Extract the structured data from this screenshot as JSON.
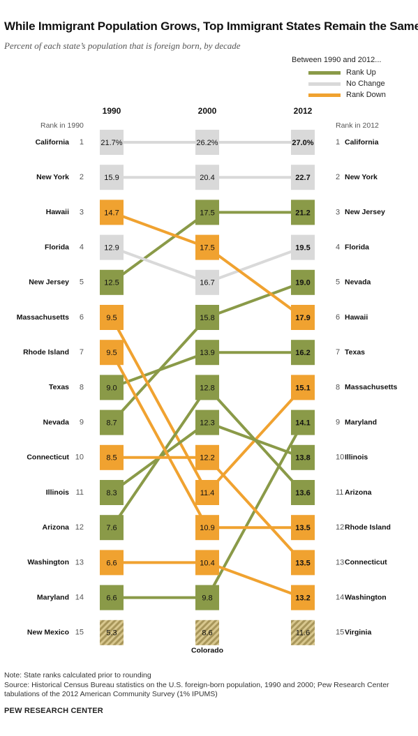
{
  "title": "While Immigrant Population Grows, Top Immigrant States Remain the Same",
  "subtitle": "Percent of each state’s population that is foreign born, by decade",
  "legend": {
    "title": "Between 1990 and 2012...",
    "items": [
      {
        "label": "Rank Up",
        "color": "#8a9a48"
      },
      {
        "label": "No Change",
        "color": "#d9d9d9"
      },
      {
        "label": "Rank Down",
        "color": "#f0a230"
      }
    ]
  },
  "colors": {
    "up": "#8a9a48",
    "same": "#d9d9d9",
    "down": "#f0a230",
    "hatch_a": "#d8c78e",
    "hatch_b": "#a8965a"
  },
  "chart_data": {
    "type": "slope",
    "columns": [
      "1990",
      "2000",
      "2012"
    ],
    "left_header": "Rank in 1990",
    "right_header": "Rank in 2012",
    "unit": "percent foreign born",
    "extra_label_2000": "Colorado",
    "states": [
      {
        "name": "California",
        "status": "same",
        "ranks": [
          1,
          1,
          1
        ],
        "values": [
          "21.7%",
          "26.2%",
          "27.0%"
        ]
      },
      {
        "name": "New York",
        "status": "same",
        "ranks": [
          2,
          2,
          2
        ],
        "values": [
          "15.9",
          "20.4",
          "22.7"
        ]
      },
      {
        "name": "New Jersey",
        "status": "up",
        "ranks": [
          5,
          3,
          3
        ],
        "values": [
          "12.5",
          "17.5",
          "21.2"
        ]
      },
      {
        "name": "Florida",
        "status": "same",
        "ranks": [
          4,
          5,
          4
        ],
        "values": [
          "12.9",
          "16.7",
          "19.5"
        ]
      },
      {
        "name": "Nevada",
        "status": "up",
        "ranks": [
          9,
          6,
          5
        ],
        "values": [
          "8.7",
          "15.8",
          "19.0"
        ]
      },
      {
        "name": "Hawaii",
        "status": "down",
        "ranks": [
          3,
          4,
          6
        ],
        "values": [
          "14.7",
          "17.5",
          "17.9"
        ]
      },
      {
        "name": "Texas",
        "status": "up",
        "ranks": [
          8,
          7,
          7
        ],
        "values": [
          "9.0",
          "13.9",
          "16.2"
        ]
      },
      {
        "name": "Massachusetts",
        "status": "down",
        "ranks": [
          6,
          11,
          8
        ],
        "values": [
          "9.5",
          "11.4",
          "15.1"
        ]
      },
      {
        "name": "Maryland",
        "status": "up",
        "ranks": [
          14,
          14,
          9
        ],
        "values": [
          "6.6",
          "9.8",
          "14.1"
        ]
      },
      {
        "name": "Illinois",
        "status": "up",
        "ranks": [
          11,
          9,
          10
        ],
        "values": [
          "8.3",
          "12.3",
          "13.8"
        ]
      },
      {
        "name": "Arizona",
        "status": "up",
        "ranks": [
          12,
          8,
          11
        ],
        "values": [
          "7.6",
          "12.8",
          "13.6"
        ]
      },
      {
        "name": "Rhode Island",
        "status": "down",
        "ranks": [
          7,
          12,
          12
        ],
        "values": [
          "9.5",
          "10.9",
          "13.5"
        ]
      },
      {
        "name": "Connecticut",
        "status": "down",
        "ranks": [
          10,
          10,
          13
        ],
        "values": [
          "8.5",
          "12.2",
          "13.5"
        ]
      },
      {
        "name": "Washington",
        "status": "down",
        "ranks": [
          13,
          13,
          14
        ],
        "values": [
          "6.6",
          "10.4",
          "13.2"
        ]
      },
      {
        "name": "New Mexico",
        "status": "hatch",
        "ranks": [
          15,
          null,
          null
        ],
        "values": [
          "5.3",
          null,
          null
        ]
      },
      {
        "name": "Colorado",
        "status": "hatch",
        "ranks": [
          null,
          15,
          null
        ],
        "values": [
          null,
          "8.6",
          null
        ]
      },
      {
        "name": "Virginia",
        "status": "hatch",
        "ranks": [
          null,
          null,
          15
        ],
        "values": [
          null,
          null,
          "11.6"
        ]
      }
    ]
  },
  "notes": {
    "note": "Note: State ranks calculated prior to rounding",
    "source": "Source: Historical Census Bureau statistics on the U.S. foreign-born population, 1990 and 2000; Pew Research Center\ntabulations of the 2012 American Community Survey (1% IPUMS)"
  },
  "credit": "PEW RESEARCH CENTER"
}
